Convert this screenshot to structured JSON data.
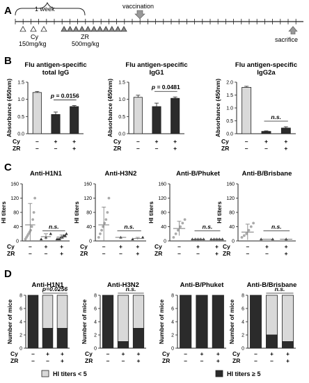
{
  "panel_labels": [
    "A",
    "B",
    "C",
    "D"
  ],
  "timeline": {
    "week_label": "1 week",
    "vaccination_label": "vaccination",
    "sacrifice_label": "sacrifice",
    "cy_label": "Cy",
    "cy_dose": "150mg/kg",
    "zr_label": "ZR",
    "zr_dose": "500mg/kg",
    "cy_doses_count": 3,
    "zr_doses_count": 11
  },
  "group_rows": {
    "cy_label": "Cy",
    "zr_label": "ZR",
    "cy": [
      "–",
      "+",
      "+"
    ],
    "zr": [
      "–",
      "–",
      "+"
    ]
  },
  "chart_data": [
    {
      "type": "bar",
      "title": "Flu antigen-specific total IgG",
      "title_lines": [
        "Flu antigen-specific",
        "total IgG"
      ],
      "ylabel": "Absorbance (450nm)",
      "ylim": [
        0,
        1.5
      ],
      "yticks": [
        "0.0",
        "0.5",
        "1.0",
        "1.5"
      ],
      "values": [
        1.2,
        0.56,
        0.79
      ],
      "errors": [
        0.03,
        0.07,
        0.03
      ],
      "colors": [
        "#d9d9d9",
        "#2b2b2b",
        "#2b2b2b"
      ],
      "annotation": "p = 0.0156",
      "annotation_italic_p": true
    },
    {
      "type": "bar",
      "title": "Flu antigen-specific IgG1",
      "title_lines": [
        "Flu antigen-specific",
        "IgG1"
      ],
      "ylabel": "Absorbance (450nm)",
      "ylim": [
        0,
        1.5
      ],
      "yticks": [
        "0.0",
        "0.5",
        "1.0",
        "1.5"
      ],
      "values": [
        1.06,
        0.79,
        1.03
      ],
      "errors": [
        0.06,
        0.1,
        0.04
      ],
      "colors": [
        "#d9d9d9",
        "#2b2b2b",
        "#2b2b2b"
      ],
      "annotation": "p = 0.0481",
      "annotation_italic_p": true
    },
    {
      "type": "bar",
      "title": "Flu antigen-specific IgG2a",
      "title_lines": [
        "Flu antigen-specific",
        "IgG2a"
      ],
      "ylabel": "Absorbance (450nm)",
      "ylim": [
        0,
        2.0
      ],
      "yticks": [
        "0.0",
        "0.5",
        "1.0",
        "1.5",
        "2.0"
      ],
      "values": [
        1.8,
        0.09,
        0.22
      ],
      "errors": [
        0.04,
        0.02,
        0.05
      ],
      "colors": [
        "#d9d9d9",
        "#2b2b2b",
        "#2b2b2b"
      ],
      "annotation": "n.s."
    },
    {
      "type": "scatter",
      "title": "Anti-H1N1",
      "ylabel": "HI titers",
      "ylim": [
        0,
        160
      ],
      "yticks": [
        "0",
        "40",
        "80",
        "120",
        "160"
      ],
      "points": [
        [
          5,
          10,
          15,
          20,
          25,
          30,
          40,
          60,
          80,
          120
        ],
        [
          5,
          10,
          20
        ],
        [
          5,
          5,
          5,
          10,
          10,
          15,
          15,
          20
        ]
      ],
      "means": [
        45,
        12,
        11
      ],
      "sds": [
        60,
        8,
        6
      ],
      "annotation": "n.s."
    },
    {
      "type": "scatter",
      "title": "Anti-H3N2",
      "ylabel": "HI titers",
      "ylim": [
        0,
        160
      ],
      "yticks": [
        "0",
        "40",
        "80",
        "120",
        "160"
      ],
      "points": [
        [
          10,
          20,
          30,
          40,
          50,
          60,
          80,
          120
        ],
        [
          10
        ],
        [
          5,
          10
        ]
      ],
      "means": [
        45,
        10,
        7
      ],
      "sds": [
        50,
        0,
        3
      ],
      "annotation": "n.s."
    },
    {
      "type": "scatter",
      "title": "Anti-B/Phuket",
      "ylabel": "HI titers",
      "ylim": [
        0,
        160
      ],
      "yticks": [
        "0",
        "40",
        "80",
        "120",
        "160"
      ],
      "points": [
        [
          10,
          20,
          30,
          40,
          50,
          60
        ],
        [
          5,
          5,
          5,
          5,
          5
        ],
        [
          5,
          5,
          5,
          5,
          5
        ]
      ],
      "means": [
        35,
        5,
        5
      ],
      "sds": [
        20,
        1,
        1
      ],
      "annotation": "n.s."
    },
    {
      "type": "scatter",
      "title": "Anti-B/Brisbane",
      "ylabel": "HI titers",
      "ylim": [
        0,
        160
      ],
      "yticks": [
        "0",
        "40",
        "80",
        "120",
        "160"
      ],
      "points": [
        [
          10,
          15,
          20,
          30,
          40,
          50
        ],
        [
          5,
          5
        ],
        [
          5
        ]
      ],
      "means": [
        25,
        5,
        5
      ],
      "sds": [
        22,
        0,
        0
      ],
      "annotation": "n.s."
    },
    {
      "type": "bar",
      "stacked": true,
      "title": "Anti-H1N1",
      "ylabel": "Number of mice",
      "ylim": [
        0,
        8
      ],
      "yticks": [
        "0",
        "2",
        "4",
        "6",
        "8"
      ],
      "dark": [
        8,
        3,
        3
      ],
      "light": [
        0,
        5,
        5
      ],
      "annotation": "p=0.0256",
      "annotation_italic": true
    },
    {
      "type": "bar",
      "stacked": true,
      "title": "Anti-H3N2",
      "ylabel": "Number of mice",
      "ylim": [
        0,
        8
      ],
      "yticks": [
        "0",
        "2",
        "4",
        "6",
        "8"
      ],
      "dark": [
        8,
        1,
        3
      ],
      "light": [
        0,
        7,
        5
      ],
      "annotation": "n.s."
    },
    {
      "type": "bar",
      "stacked": true,
      "title": "Anti-B/Phuket",
      "ylabel": "Number of mice",
      "ylim": [
        0,
        8
      ],
      "yticks": [
        "0",
        "2",
        "4",
        "6",
        "8"
      ],
      "dark": [
        8,
        8,
        8
      ],
      "light": [
        0,
        0,
        0
      ],
      "annotation": ""
    },
    {
      "type": "bar",
      "stacked": true,
      "title": "Anti-B/Brisbane",
      "ylabel": "Number of mice",
      "ylim": [
        0,
        8
      ],
      "yticks": [
        "0",
        "2",
        "4",
        "6",
        "8"
      ],
      "dark": [
        8,
        2,
        1
      ],
      "light": [
        0,
        6,
        7
      ],
      "annotation": "n.s."
    }
  ],
  "legend_d": {
    "light_label": "HI titers < 5",
    "dark_label": "HI titers ≥ 5",
    "light_color": "#d9d9d9",
    "dark_color": "#2b2b2b"
  }
}
